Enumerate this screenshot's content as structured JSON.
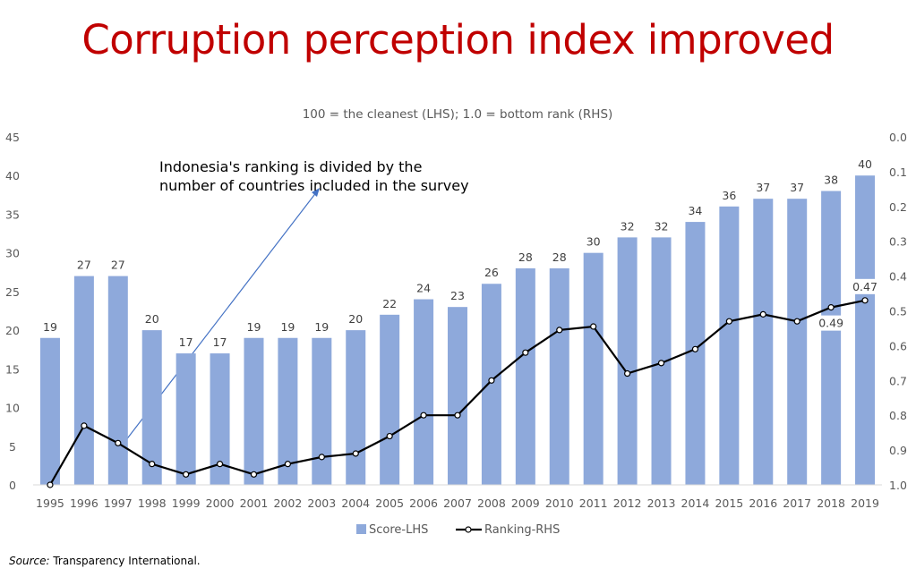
{
  "title": "Corruption perception index improved",
  "source": {
    "label": "Source:",
    "text": " Transparency International."
  },
  "chart_data": {
    "type": "bar+line",
    "title": "Corruption perception index improved",
    "subtitle": "100 = the cleanest (LHS); 1.0 = bottom rank (RHS)",
    "categories": [
      "1995",
      "1996",
      "1997",
      "1998",
      "1999",
      "2000",
      "2001",
      "2002",
      "2003",
      "2004",
      "2005",
      "2006",
      "2007",
      "2008",
      "2009",
      "2010",
      "2011",
      "2012",
      "2013",
      "2014",
      "2015",
      "2016",
      "2017",
      "2018",
      "2019"
    ],
    "series": [
      {
        "name": "Score-LHS",
        "type": "bar",
        "axis": "left",
        "color": "#8EA9DB",
        "values": [
          19,
          27,
          27,
          20,
          17,
          17,
          19,
          19,
          19,
          20,
          22,
          24,
          23,
          26,
          28,
          28,
          30,
          32,
          32,
          34,
          36,
          37,
          37,
          38,
          40
        ]
      },
      {
        "name": "Ranking-RHS",
        "type": "line",
        "axis": "right",
        "color": "#000000",
        "values": [
          1.0,
          0.83,
          0.88,
          0.94,
          0.97,
          0.94,
          0.97,
          0.94,
          0.92,
          0.91,
          0.86,
          0.8,
          0.8,
          0.7,
          0.62,
          0.555,
          0.545,
          0.68,
          0.65,
          0.61,
          0.53,
          0.51,
          0.53,
          0.49,
          0.47
        ],
        "labels": {
          "2018": "0.49",
          "2019": "0.47"
        }
      }
    ],
    "left_axis": {
      "ylim": [
        0,
        45
      ],
      "ticks": [
        "0",
        "5",
        "10",
        "15",
        "20",
        "25",
        "30",
        "35",
        "40",
        "45"
      ]
    },
    "right_axis": {
      "ylim": [
        0.0,
        1.0
      ],
      "reversed": true,
      "ticks": [
        "0.0",
        "0.1",
        "0.2",
        "0.3",
        "0.4",
        "0.5",
        "0.6",
        "0.7",
        "0.8",
        "0.9",
        "1.0"
      ]
    },
    "annotation": {
      "lines": [
        "Indonesia's ranking is divided by the",
        "number of countries included in the survey"
      ]
    },
    "legend": {
      "position": "bottom",
      "entries": [
        "Score-LHS",
        "Ranking-RHS"
      ]
    },
    "grid": false
  }
}
